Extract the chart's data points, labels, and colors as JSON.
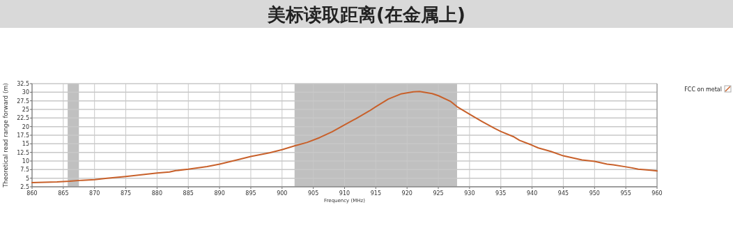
{
  "chart_data": {
    "type": "line",
    "title": "美标读取距离(在金属上)",
    "xlabel": "Frequency (MHz)",
    "ylabel": "Theoretical read range forward (m)",
    "xlim": [
      860,
      960
    ],
    "xticks": [
      860,
      865,
      870,
      875,
      880,
      885,
      890,
      895,
      900,
      905,
      910,
      915,
      920,
      925,
      930,
      935,
      940,
      945,
      950,
      955,
      960
    ],
    "ylim": [
      2.5,
      32.5
    ],
    "yticks": [
      2.5,
      5,
      7.5,
      10,
      12.5,
      15,
      17.5,
      20,
      22.5,
      25,
      27.5,
      30,
      32.5
    ],
    "grid": true,
    "legend": "right",
    "marker": "none",
    "line_style": "solid",
    "bands": [
      {
        "axis": "x",
        "from": 865.7,
        "to": 867.5,
        "color": "#c0c0c0"
      },
      {
        "axis": "x",
        "from": 902,
        "to": 928,
        "color": "#c0c0c0"
      }
    ],
    "series": [
      {
        "name": "FCC on metal",
        "color": "#c8602a",
        "x": [
          860,
          862,
          864,
          866,
          868,
          870,
          872,
          875,
          878,
          880,
          882,
          883,
          885,
          888,
          890,
          893,
          895,
          898,
          900,
          902,
          904,
          906,
          908,
          910,
          912,
          914,
          915,
          917,
          919,
          921,
          922,
          924,
          925,
          927,
          928,
          930,
          932,
          934,
          935,
          937,
          938,
          940,
          941,
          943,
          945,
          946,
          948,
          949,
          950,
          952,
          953,
          955,
          956,
          957,
          959,
          960
        ],
        "values": [
          3.7,
          3.8,
          3.9,
          4.1,
          4.4,
          4.6,
          5.0,
          5.5,
          6.1,
          6.5,
          6.8,
          7.2,
          7.6,
          8.4,
          9.1,
          10.4,
          11.3,
          12.4,
          13.3,
          14.4,
          15.4,
          16.8,
          18.5,
          20.5,
          22.5,
          24.6,
          25.8,
          28.0,
          29.5,
          30.1,
          30.2,
          29.6,
          29.0,
          27.3,
          25.8,
          23.6,
          21.5,
          19.5,
          18.6,
          17.1,
          16.0,
          14.6,
          13.8,
          12.8,
          11.5,
          11.1,
          10.3,
          10.1,
          9.9,
          9.1,
          8.9,
          8.3,
          8.0,
          7.6,
          7.3,
          7.1
        ]
      }
    ]
  }
}
